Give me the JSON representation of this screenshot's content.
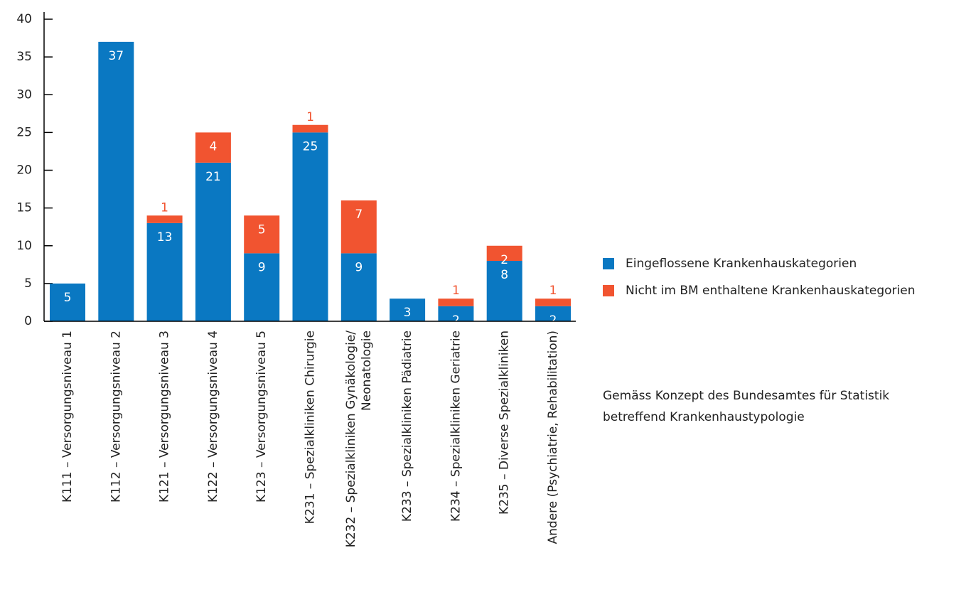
{
  "chart_data": {
    "type": "stacked-bar",
    "categories": [
      "K111 – Versorgungsniveau 1",
      "K112 – Versorgungsniveau 2",
      "K121 – Versorgungsniveau 3",
      "K122 – Versorgungsniveau 4",
      "K123 – Versorgungsniveau 5",
      "K231 – Spezialkliniken Chirurgie",
      "K232 – Spezialkliniken Gynäkologie/\nNeonatologie",
      "K233 – Spezialkliniken Pädiatrie",
      "K234 – Spezialkliniken Geriatrie",
      "K235 – Diverse Spezialkliniken",
      "Andere (Psychiatrie, Rehabilitation)"
    ],
    "series": [
      {
        "name": "Eingeflossene Krankenhauskategorien",
        "color": "#0a78c2",
        "values": [
          5,
          37,
          13,
          21,
          9,
          25,
          9,
          3,
          2,
          8,
          2
        ]
      },
      {
        "name": "Nicht im BM enthaltene Krankenhauskategorien",
        "color": "#f15430",
        "values": [
          null,
          null,
          1,
          4,
          5,
          1,
          7,
          null,
          1,
          2,
          1
        ]
      }
    ],
    "ylim": [
      0,
      40
    ],
    "yticks": [
      0,
      5,
      10,
      15,
      20,
      25,
      30,
      35,
      40
    ],
    "note": [
      "Gemäss Konzept des Bundesamtes für Statistik",
      "betreffend Krankenhaustypologie"
    ]
  }
}
